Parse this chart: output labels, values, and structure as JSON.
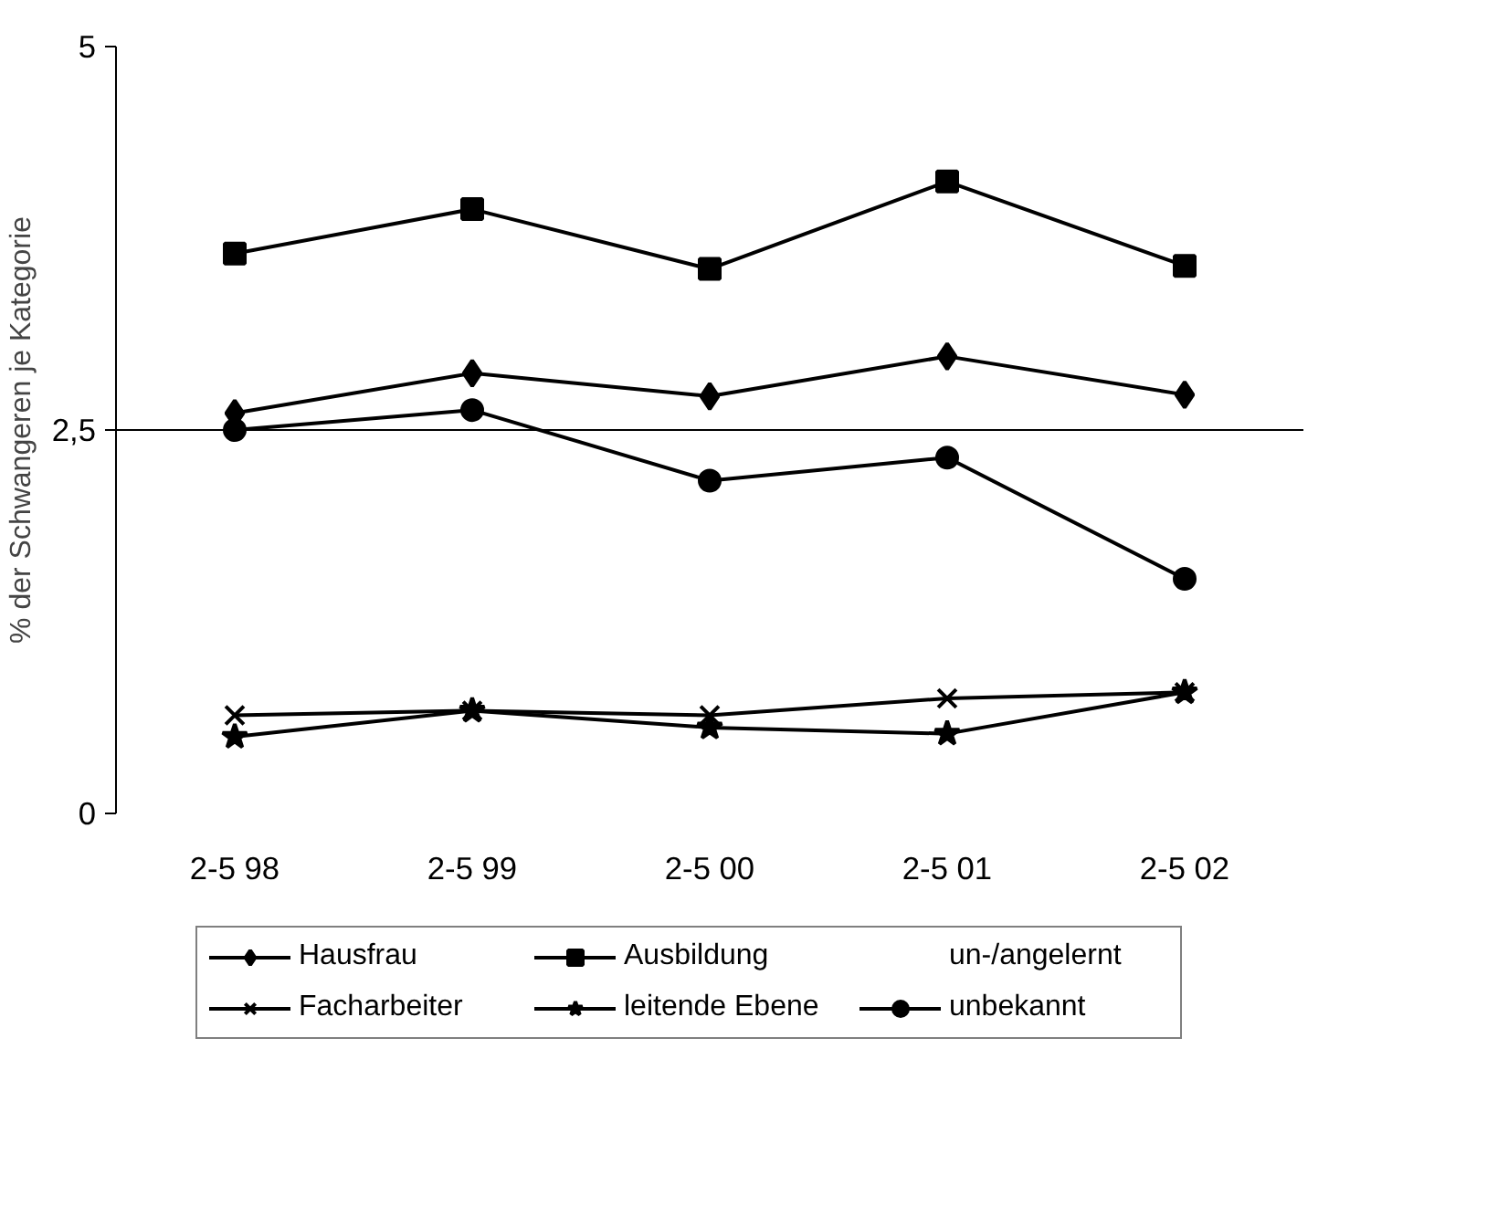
{
  "chart_data": {
    "type": "line",
    "ylabel": "% der Schwangeren je Kategorie",
    "categories": [
      "2-5 98",
      "2-5 99",
      "2-5 00",
      "2-5 01",
      "2-5 02"
    ],
    "ylim": [
      0,
      5
    ],
    "yticks": [
      0,
      {
        "value": 2.5,
        "label": "2,5"
      },
      5
    ],
    "grid": "y",
    "legend": "bottom",
    "series": [
      {
        "name": "Hausfrau",
        "color": "#000000",
        "marker": "diamond",
        "values": [
          2.61,
          2.87,
          2.72,
          2.98,
          2.73
        ]
      },
      {
        "name": "Ausbildung",
        "color": "#000000",
        "marker": "square",
        "values": [
          3.65,
          3.94,
          3.55,
          4.12,
          3.57
        ]
      },
      {
        "name": "un-/angelernt",
        "marker": "none",
        "values": [
          null,
          null,
          null,
          null,
          null
        ]
      },
      {
        "name": "Facharbeiter",
        "color": "#000000",
        "marker": "cross",
        "values": [
          0.64,
          0.67,
          0.64,
          0.75,
          0.79
        ]
      },
      {
        "name": "leitende Ebene",
        "color": "#000000",
        "marker": "star",
        "values": [
          0.5,
          0.67,
          0.56,
          0.52,
          0.79
        ]
      },
      {
        "name": "unbekannt",
        "color": "#000000",
        "marker": "circle",
        "values": [
          2.5,
          2.63,
          2.17,
          2.32,
          1.53
        ]
      }
    ]
  }
}
